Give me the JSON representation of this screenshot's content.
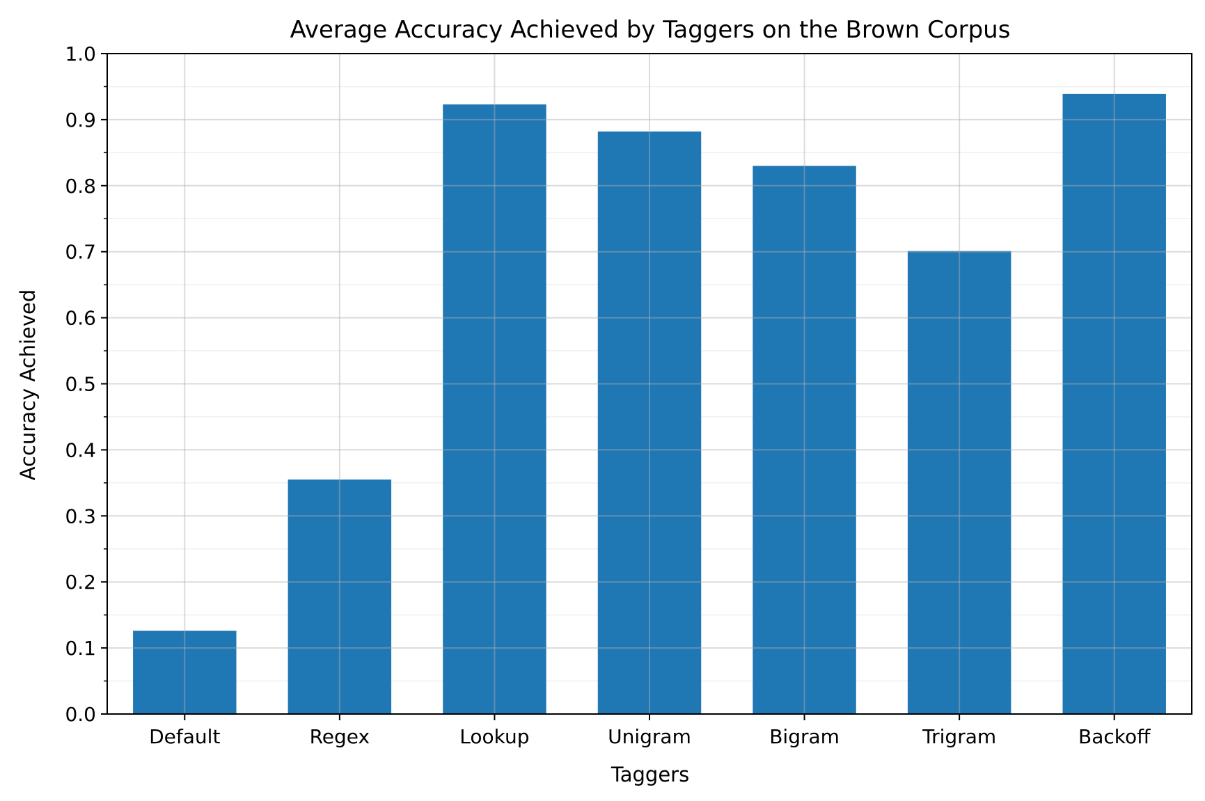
{
  "chart_data": {
    "type": "bar",
    "title": "Average Accuracy Achieved by Taggers on the Brown Corpus",
    "xlabel": "Taggers",
    "ylabel": "Accuracy Achieved",
    "categories": [
      "Default",
      "Regex",
      "Lookup",
      "Unigram",
      "Bigram",
      "Trigram",
      "Backoff"
    ],
    "values": [
      0.126,
      0.355,
      0.923,
      0.882,
      0.83,
      0.701,
      0.939
    ],
    "ylim": [
      0,
      1.0
    ],
    "yticks": [
      "0.0",
      "0.1",
      "0.2",
      "0.3",
      "0.4",
      "0.5",
      "0.6",
      "0.7",
      "0.8",
      "0.9",
      "1.0"
    ],
    "grid": true,
    "bar_color": "#1f77b4"
  }
}
